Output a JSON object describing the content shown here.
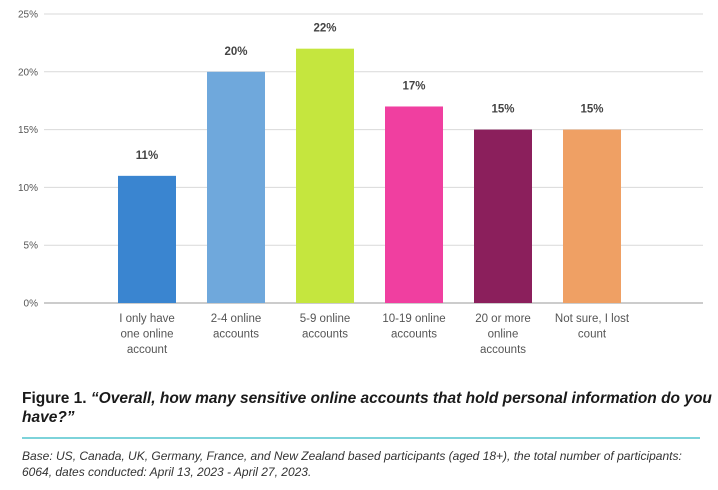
{
  "chart_data": {
    "type": "bar",
    "categories": [
      [
        "I only have",
        "one online",
        "account"
      ],
      [
        "2-4 online",
        "accounts"
      ],
      [
        "5-9 online",
        "accounts"
      ],
      [
        "10-19 online",
        "accounts"
      ],
      [
        "20 or more",
        "online",
        "accounts"
      ],
      [
        "Not sure, I lost",
        "count"
      ]
    ],
    "values": [
      11,
      20,
      22,
      17,
      15,
      15
    ],
    "value_labels": [
      "11%",
      "20%",
      "22%",
      "17%",
      "15%",
      "15%"
    ],
    "bar_colors": [
      "#3a85d0",
      "#6fa8dc",
      "#c5e63e",
      "#f03fa0",
      "#8b1f5c",
      "#efa064"
    ],
    "y_ticks": [
      0,
      5,
      10,
      15,
      20,
      25
    ],
    "y_tick_labels": [
      "0%",
      "5%",
      "10%",
      "15%",
      "20%",
      "25%"
    ],
    "ylim": [
      0,
      25
    ],
    "grid": true,
    "title": "",
    "xlabel": "",
    "ylabel": ""
  },
  "caption": {
    "figure_number": "Figure 1.",
    "question": "“Overall, how many sensitive online accounts that hold personal information do you have?”"
  },
  "base_note": "Base: US, Canada, UK, Germany, France, and New Zealand based participants (aged 18+), the total number of participants: 6064, dates conducted: April 13, 2023 - April 27, 2023.",
  "colors": {
    "divider": "#7dd3da",
    "grid": "#d9d9d9",
    "axis": "#999999"
  }
}
